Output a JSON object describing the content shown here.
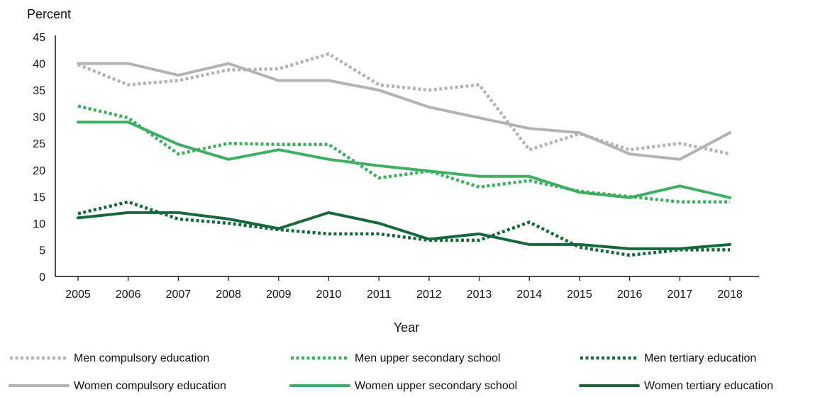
{
  "chart_data": {
    "type": "line",
    "title": "",
    "ylabel": "Percent",
    "xlabel": "Year",
    "ylim": [
      0,
      45
    ],
    "yticks": [
      0,
      5,
      10,
      15,
      20,
      25,
      30,
      35,
      40,
      45
    ],
    "x": [
      "2005",
      "2006",
      "2007",
      "2008",
      "2009",
      "2010",
      "2011",
      "2012",
      "2013",
      "2014",
      "2015",
      "2016",
      "2017",
      "2018"
    ],
    "grid": false,
    "legend_position": "bottom",
    "series": [
      {
        "name": "Men compulsory education",
        "color": "#b3b3b3",
        "dash": "dotted",
        "values": [
          39.8,
          36,
          36.8,
          38.8,
          39,
          41.8,
          36,
          35,
          36,
          23.8,
          26.8,
          23.8,
          25,
          23
        ]
      },
      {
        "name": "Men upper secondary school",
        "color": "#3cb061",
        "dash": "dotted",
        "values": [
          32,
          29.8,
          23,
          25,
          24.8,
          24.8,
          18.5,
          19.8,
          16.8,
          18,
          16,
          15,
          14,
          14
        ]
      },
      {
        "name": "Men tertiary education",
        "color": "#16693a",
        "dash": "dotted",
        "values": [
          11.8,
          14,
          10.8,
          10,
          8.8,
          8,
          8,
          6.8,
          6.8,
          10.2,
          5.5,
          4,
          5,
          5
        ]
      },
      {
        "name": "Women compulsory education",
        "color": "#b3b3b3",
        "dash": "solid",
        "values": [
          40,
          40,
          37.8,
          40,
          36.8,
          36.8,
          35,
          31.8,
          29.8,
          27.8,
          27,
          23,
          22,
          27
        ]
      },
      {
        "name": "Women upper secondary school",
        "color": "#3cb061",
        "dash": "solid",
        "values": [
          29,
          29,
          24.8,
          22,
          23.8,
          22,
          20.8,
          19.8,
          18.8,
          18.8,
          15.8,
          14.8,
          17,
          14.8
        ]
      },
      {
        "name": "Women tertiary education",
        "color": "#16693a",
        "dash": "solid",
        "values": [
          11,
          12,
          12,
          10.8,
          9,
          12,
          10,
          7,
          8,
          6,
          6,
          5.2,
          5.2,
          6
        ]
      }
    ]
  }
}
